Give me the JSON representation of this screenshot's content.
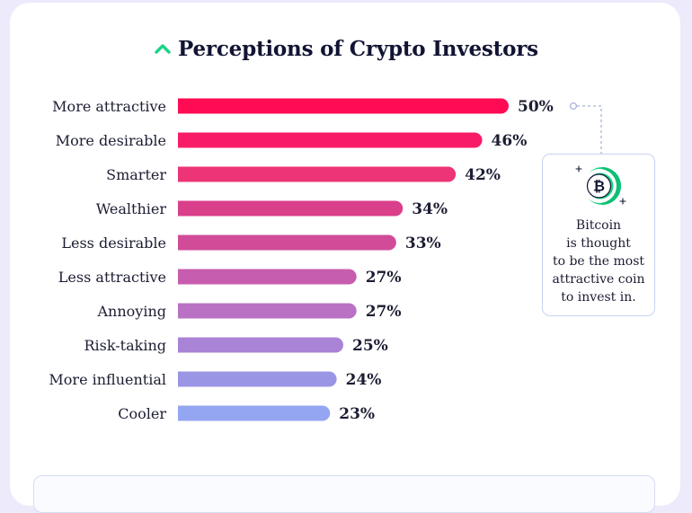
{
  "title": "Perceptions of Crypto Investors",
  "colors": {
    "page_background": "#eceafb",
    "accent_green": "#1ad486",
    "text": "#1c1d33",
    "bar_colors": [
      "#ff0b54",
      "#f81c68",
      "#ec3477",
      "#da3f8b",
      "#d14b98",
      "#c75daf",
      "#b971c4",
      "#a983d6",
      "#9b95e6",
      "#94a6f1"
    ]
  },
  "chart_data": {
    "type": "bar",
    "orientation": "horizontal",
    "title": "Perceptions of Crypto Investors",
    "categories": [
      "More attractive",
      "More desirable",
      "Smarter",
      "Wealthier",
      "Less desirable",
      "Less attractive",
      "Annoying",
      "Risk-taking",
      "More influential",
      "Cooler"
    ],
    "values": [
      50,
      46,
      42,
      34,
      33,
      27,
      27,
      25,
      24,
      23
    ],
    "value_labels": [
      "50%",
      "46%",
      "42%",
      "34%",
      "33%",
      "27%",
      "27%",
      "25%",
      "24%",
      "23%"
    ],
    "unit": "%",
    "xlim": [
      0,
      50
    ],
    "xlabel": "",
    "ylabel": "",
    "grid": false,
    "legend": "none"
  },
  "callout": {
    "icon": "bitcoin-coin-icon",
    "lines": [
      "Bitcoin",
      "is thought",
      "to be the most",
      "attractive coin",
      "to invest in."
    ]
  }
}
